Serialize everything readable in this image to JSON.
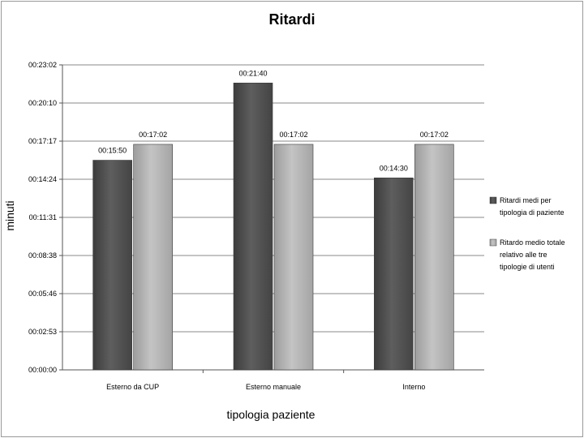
{
  "chart_data": {
    "type": "bar",
    "title": "Ritardi",
    "xlabel": "tipologia paziente",
    "ylabel": "minuti",
    "categories": [
      "Esterno da CUP",
      "Esterno manuale",
      "Interno"
    ],
    "y_ticks": [
      "00:00:00",
      "00:02:53",
      "00:05:46",
      "00:08:38",
      "00:11:31",
      "00:14:24",
      "00:17:17",
      "00:20:10",
      "00:23:02"
    ],
    "ylim_seconds": [
      0,
      1382
    ],
    "series": [
      {
        "name": "Ritardi medi per tipologia di paziente",
        "legend_lines": [
          "Ritardi medi per",
          "tipologia di paziente"
        ],
        "values_seconds": [
          950,
          1300,
          870
        ],
        "labels": [
          "00:15:50",
          "00:21:40",
          "00:14:30"
        ],
        "color": "#555555"
      },
      {
        "name": "Ritardo medio totale relativo alle tre tipologie di utenti",
        "legend_lines": [
          "Ritardo medio totale",
          "relativo alle tre",
          "tipologie di utenti"
        ],
        "values_seconds": [
          1022,
          1022,
          1022
        ],
        "labels": [
          "00:17:02",
          "00:17:02",
          "00:17:02"
        ],
        "color": "#b4b4b4"
      }
    ],
    "grid": true,
    "legend_position": "right"
  }
}
